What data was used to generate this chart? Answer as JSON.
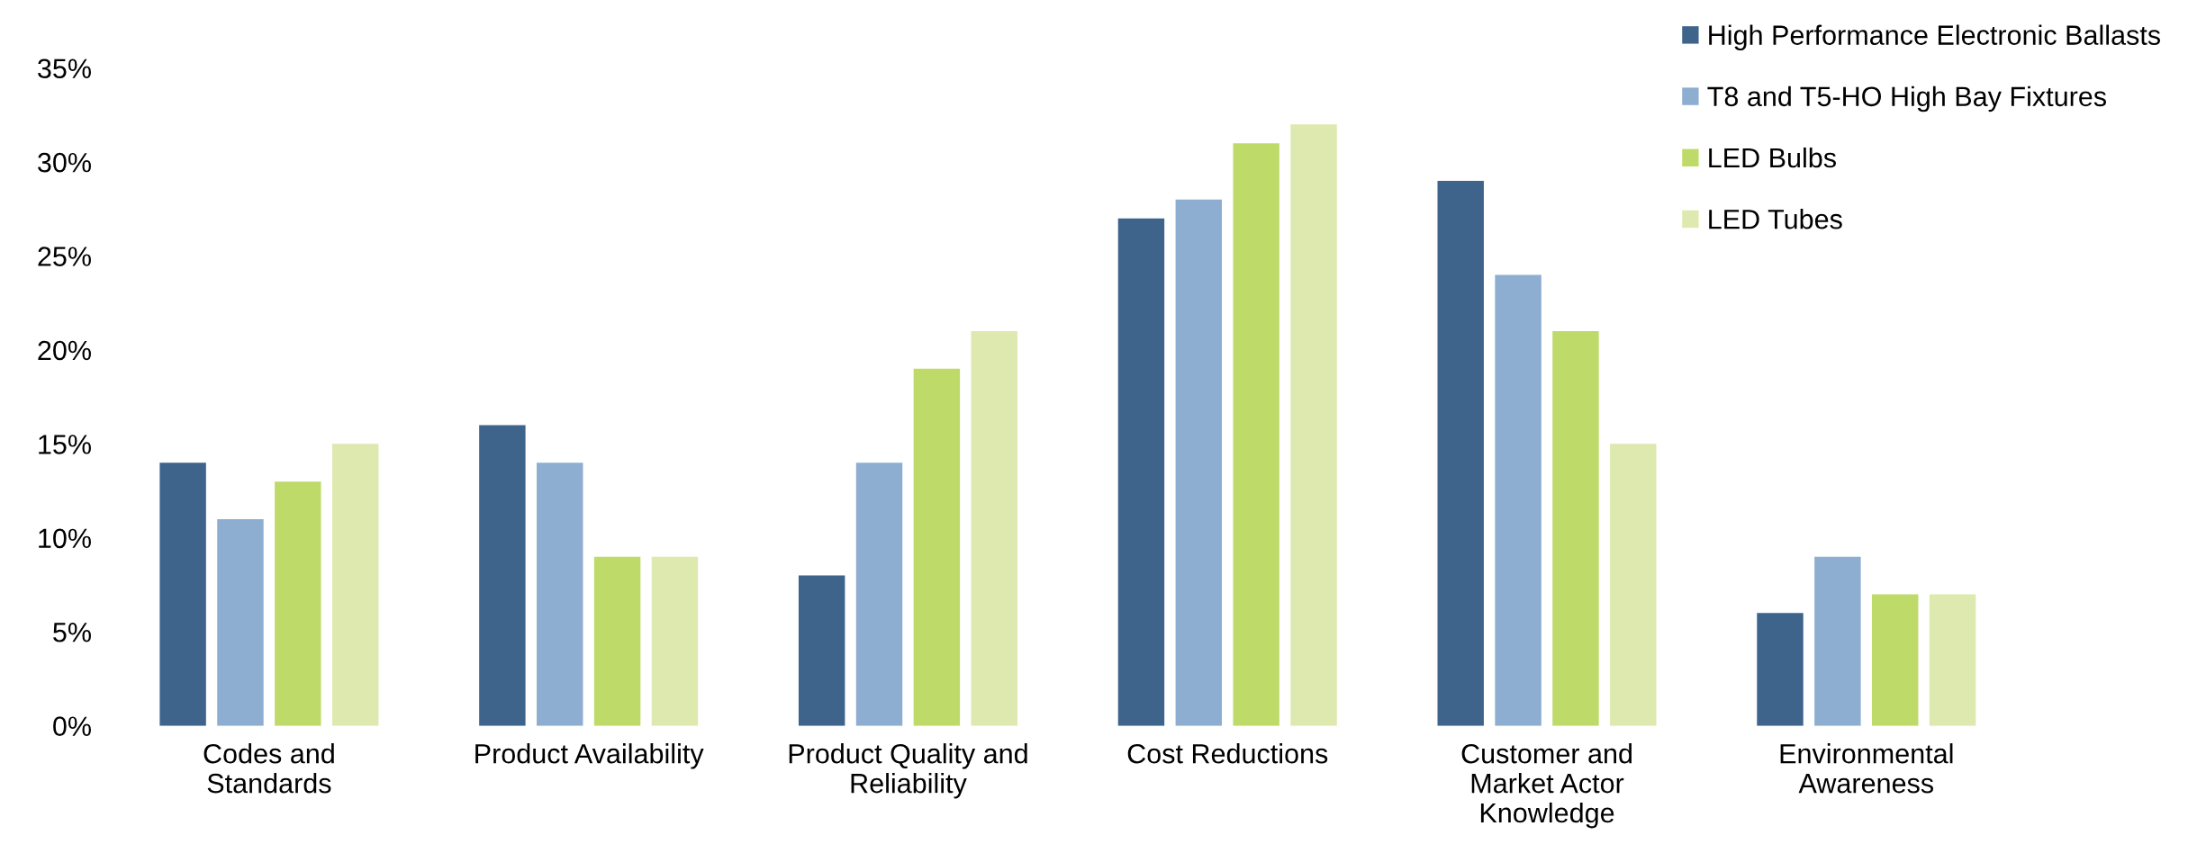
{
  "chart_data": {
    "type": "bar",
    "categories": [
      "Codes and\nStandards",
      "Product Availability",
      "Product Quality and\nReliability",
      "Cost Reductions",
      "Customer and\nMarket Actor\nKnowledge",
      "Environmental\nAwareness"
    ],
    "series": [
      {
        "name": "High Performance Electronic Ballasts",
        "color": "#3e648c",
        "values": [
          14,
          16,
          8,
          27,
          29,
          6
        ]
      },
      {
        "name": "T8 and T5-HO High Bay Fixtures",
        "color": "#8daed0",
        "values": [
          11,
          14,
          14,
          28,
          24,
          9
        ]
      },
      {
        "name": "LED Bulbs",
        "color": "#bedb6a",
        "values": [
          13,
          9,
          19,
          31,
          21,
          7
        ]
      },
      {
        "name": "LED Tubes",
        "color": "#dde9af",
        "values": [
          15,
          9,
          21,
          32,
          15,
          7
        ]
      }
    ],
    "ylim": [
      0,
      35
    ],
    "yticks": [
      {
        "value": 0,
        "label": "0%"
      },
      {
        "value": 5,
        "label": "5%"
      },
      {
        "value": 10,
        "label": "10%"
      },
      {
        "value": 15,
        "label": "15%"
      },
      {
        "value": 20,
        "label": "20%"
      },
      {
        "value": 25,
        "label": "25%"
      },
      {
        "value": 30,
        "label": "30%"
      },
      {
        "value": 35,
        "label": "35%"
      }
    ],
    "grid": false,
    "legend": "top right"
  }
}
